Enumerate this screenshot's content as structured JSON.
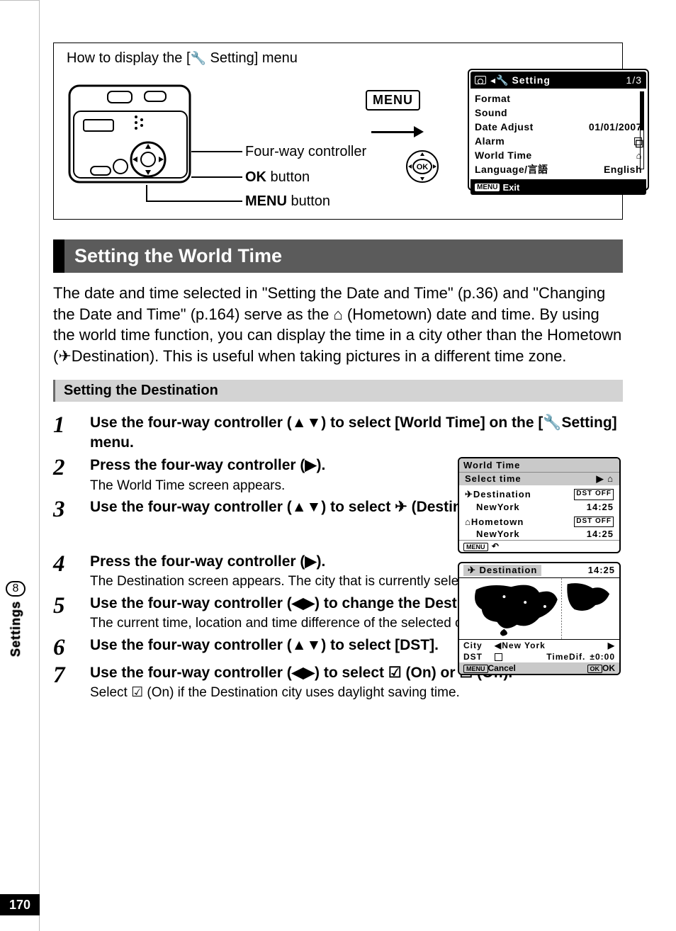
{
  "page_number": "170",
  "side_tab": {
    "number": "8",
    "label": "Settings"
  },
  "howto": {
    "title_pre": "How to display the [",
    "title_post": " Setting] menu",
    "labels": {
      "four_way": "Four-way controller",
      "ok": "OK",
      "ok_suffix": " button",
      "menu": "MENU",
      "menu_suffix": " button"
    },
    "menu_chip": "MENU"
  },
  "lcd": {
    "header_center": "Setting",
    "header_page": "1/3",
    "rows": [
      {
        "l": "Format",
        "r": ""
      },
      {
        "l": "Sound",
        "r": ""
      },
      {
        "l": "Date Adjust",
        "r": "01/01/2007"
      },
      {
        "l": "Alarm",
        "r": "☐"
      },
      {
        "l": "World Time",
        "r": "⌂"
      },
      {
        "l": "Language/言語",
        "r": "English"
      }
    ],
    "footer": "Exit",
    "footer_chip": "MENU"
  },
  "section_title": "Setting the World Time",
  "paragraph": "The date and time selected in \"Setting the Date and Time\" (p.36) and \"Changing the Date and Time\" (p.164) serve as the ⌂ (Hometown) date and time. By using the world time function, you can display the time in a city other than the Hometown (✈Destination). This is useful when taking pictures in a different time zone.",
  "subsection": "Setting the Destination",
  "steps": [
    {
      "n": "1",
      "head": "Use the four-way controller (▲▼) to select [World Time] on the [🔧Setting] menu."
    },
    {
      "n": "2",
      "head": "Press the four-way controller (▶).",
      "sub": "The World Time screen appears."
    },
    {
      "n": "3",
      "head": "Use the four-way controller (▲▼) to select ✈ (Destination)."
    },
    {
      "n": "4",
      "head": "Press the four-way controller (▶).",
      "sub": "The Destination screen appears. The city that is currently selected blinks on the map."
    },
    {
      "n": "5",
      "head": "Use the four-way controller (◀▶) to change the Destination city.",
      "sub": "The current time, location and time difference of the selected city appear."
    },
    {
      "n": "6",
      "head": "Use the four-way controller (▲▼) to select [DST]."
    },
    {
      "n": "7",
      "head": "Use the four-way controller (◀▶) to select ☑ (On) or ☐ (Off).",
      "sub": "Select ☑ (On) if the Destination city uses daylight saving time."
    }
  ],
  "shot1": {
    "title": "World Time",
    "select_time": "Select time",
    "select_val": "▶ ⌂",
    "dest_label": "✈Destination",
    "dest_dst": "DST OFF",
    "dest_city": "NewYork",
    "dest_time": "14:25",
    "home_label": "⌂Hometown",
    "home_dst": "DST OFF",
    "home_city": "NewYork",
    "home_time": "14:25",
    "back": "↶"
  },
  "shot2": {
    "title": "✈ Destination",
    "time": "14:25",
    "city_label": "City",
    "city_val": "◀New York",
    "city_arrow": "▶",
    "dst_label": "DST",
    "timedif_label": "TimeDif.",
    "timedif_val": "±0:00",
    "cancel": "Cancel",
    "ok": "OK"
  }
}
